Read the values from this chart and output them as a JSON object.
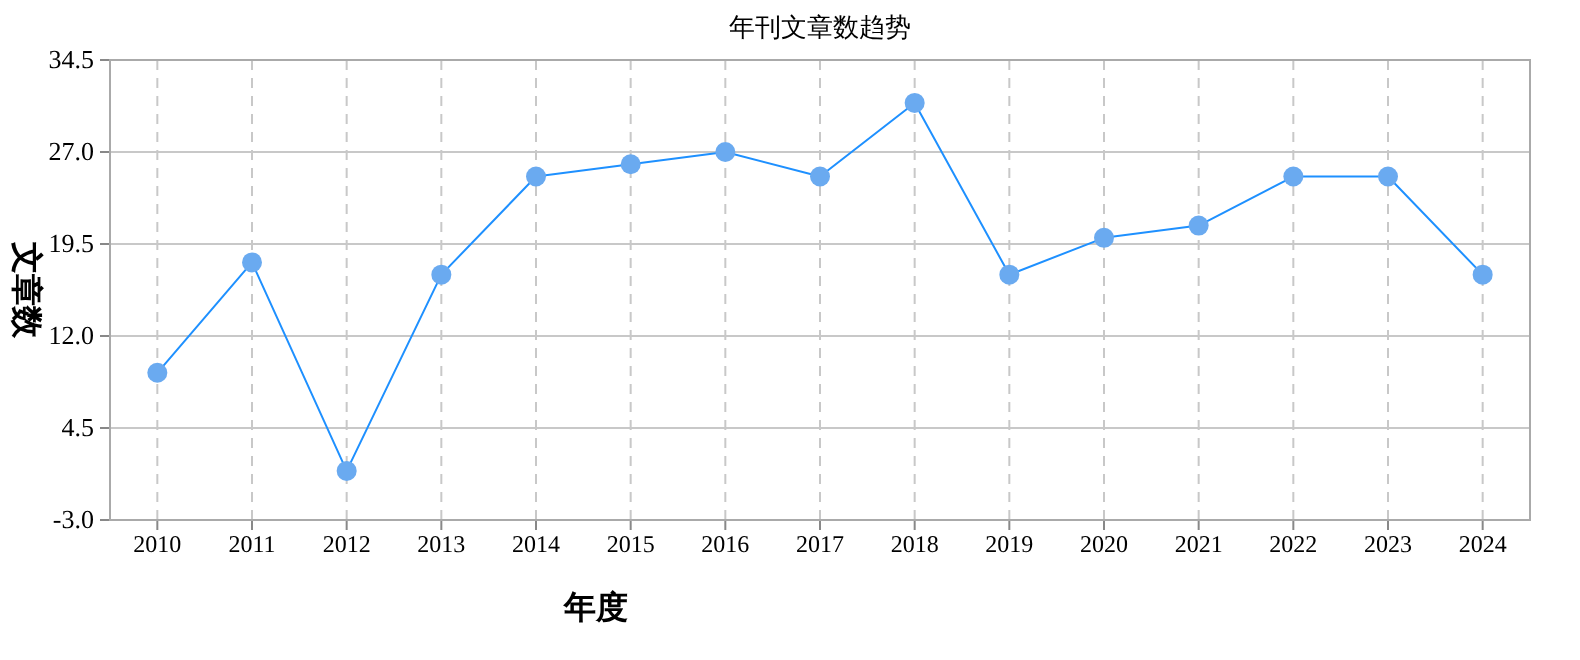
{
  "chart_data": {
    "type": "line",
    "title": "年刊文章数趋势",
    "xlabel": "年度",
    "ylabel": "文章数",
    "categories": [
      "2010",
      "2011",
      "2012",
      "2013",
      "2014",
      "2015",
      "2016",
      "2017",
      "2018",
      "2019",
      "2020",
      "2021",
      "2022",
      "2023",
      "2024"
    ],
    "series": [
      {
        "color": "#1e90ff",
        "values": [
          9,
          18,
          1,
          17,
          25,
          26,
          27,
          25,
          31,
          17,
          20,
          21,
          25,
          25,
          17
        ]
      }
    ],
    "ylim": [
      -3,
      34.5
    ],
    "yticks": [
      {
        "value": -3,
        "label": "-3.0"
      },
      {
        "value": 4.5,
        "label": "4.5"
      },
      {
        "value": 12,
        "label": "12.0"
      },
      {
        "value": 19.5,
        "label": "19.5"
      },
      {
        "value": 27,
        "label": "27.0"
      },
      {
        "value": 34.5,
        "label": "34.5"
      }
    ],
    "grid": true,
    "marker": "circle"
  }
}
